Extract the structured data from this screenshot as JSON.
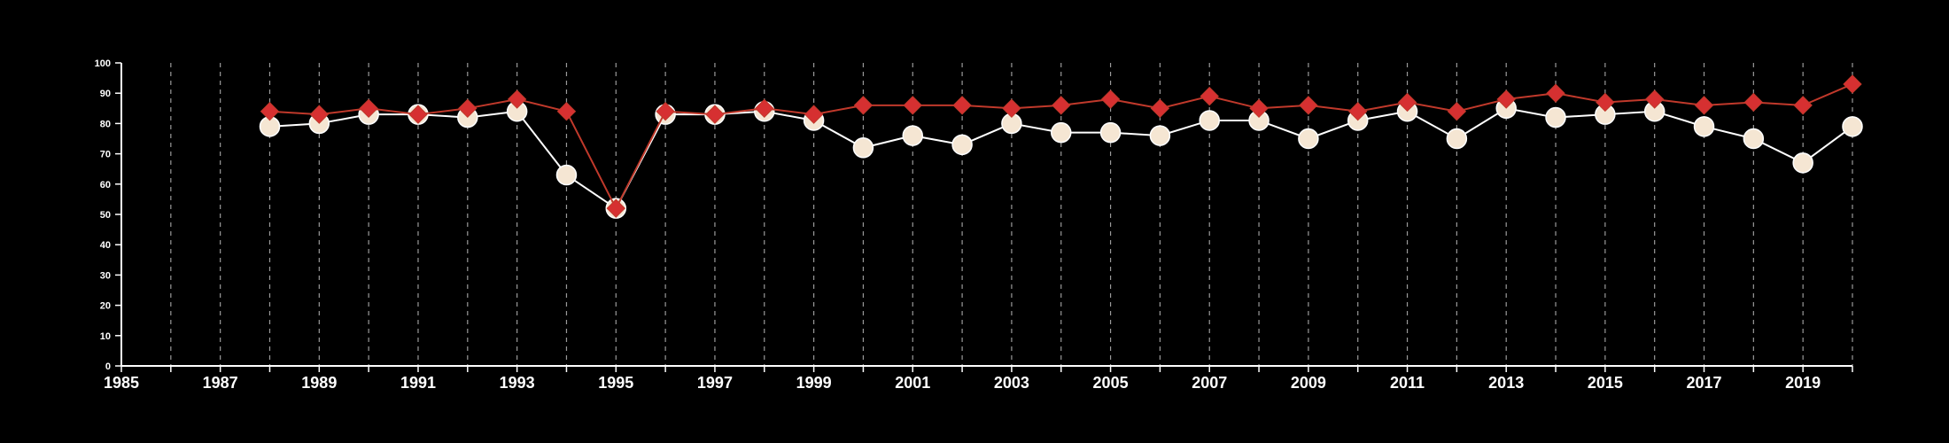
{
  "chart_data": {
    "type": "line",
    "x": [
      1988,
      1989,
      1990,
      1991,
      1992,
      1993,
      1994,
      1995,
      1996,
      1997,
      1998,
      1999,
      2000,
      2001,
      2002,
      2003,
      2004,
      2005,
      2006,
      2007,
      2008,
      2009,
      2010,
      2011,
      2012,
      2013,
      2014,
      2015,
      2016,
      2017,
      2018,
      2019,
      2020
    ],
    "series": [
      {
        "marker": "circle",
        "color": "#ffffff",
        "marker_fill": "#f5e6d3",
        "values": [
          79,
          80,
          83,
          83,
          82,
          84,
          63,
          52,
          83,
          83,
          84,
          81,
          72,
          76,
          73,
          80,
          77,
          77,
          76,
          81,
          81,
          75,
          81,
          84,
          75,
          85,
          82,
          83,
          84,
          79,
          75,
          67,
          79
        ]
      },
      {
        "marker": "diamond",
        "color": "#c0392b",
        "marker_fill": "#d63031",
        "values": [
          84,
          83,
          85,
          83,
          85,
          88,
          84,
          52,
          84,
          83,
          85,
          83,
          86,
          86,
          86,
          85,
          86,
          88,
          85,
          89,
          85,
          86,
          84,
          87,
          84,
          88,
          90,
          87,
          88,
          86,
          87,
          86,
          93
        ]
      }
    ],
    "xlim": [
      1985,
      2020
    ],
    "ylim": [
      0,
      100
    ],
    "x_tick_labels": [
      "1985",
      "1987",
      "1989",
      "1991",
      "1993",
      "1995",
      "1997",
      "1999",
      "2001",
      "2003",
      "2005",
      "2007",
      "2009",
      "2011",
      "2013",
      "2015",
      "2017",
      "2019"
    ],
    "y_tick_labels": [
      "0",
      "10",
      "20",
      "30",
      "40",
      "50",
      "60",
      "70",
      "80",
      "90",
      "100"
    ],
    "grid": "vertical dashed at each year",
    "background": "#000000",
    "axis_color": "#ffffff",
    "grid_color": "#9a9a9a",
    "title": "",
    "xlabel": "",
    "ylabel": ""
  }
}
